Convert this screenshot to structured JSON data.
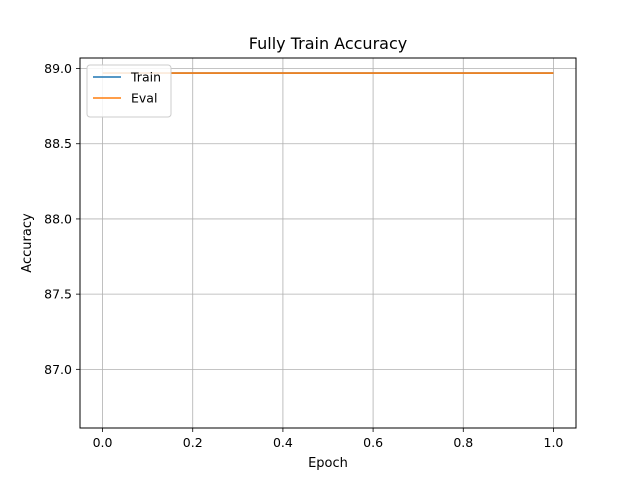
{
  "chart_data": {
    "type": "line",
    "title": "Fully Train Accuracy",
    "xlabel": "Epoch",
    "ylabel": "Accuracy",
    "x": [
      0,
      1
    ],
    "xlim": [
      -0.05,
      1.05
    ],
    "ylim": [
      86.61,
      89.07
    ],
    "xticks": [
      0.0,
      0.2,
      0.4,
      0.6,
      0.8,
      1.0
    ],
    "xtick_labels": [
      "0.0",
      "0.2",
      "0.4",
      "0.6",
      "0.8",
      "1.0"
    ],
    "yticks": [
      87.0,
      87.5,
      88.0,
      88.5,
      89.0
    ],
    "ytick_labels": [
      "87.0",
      "87.5",
      "88.0",
      "88.5",
      "89.0"
    ],
    "grid": true,
    "legend_position": "top-left",
    "series": [
      {
        "name": "Train",
        "color": "#1f77b4",
        "values": [
          88.97,
          88.97
        ]
      },
      {
        "name": "Eval",
        "color": "#ff7f0e",
        "values": [
          88.97,
          88.97
        ]
      }
    ]
  }
}
